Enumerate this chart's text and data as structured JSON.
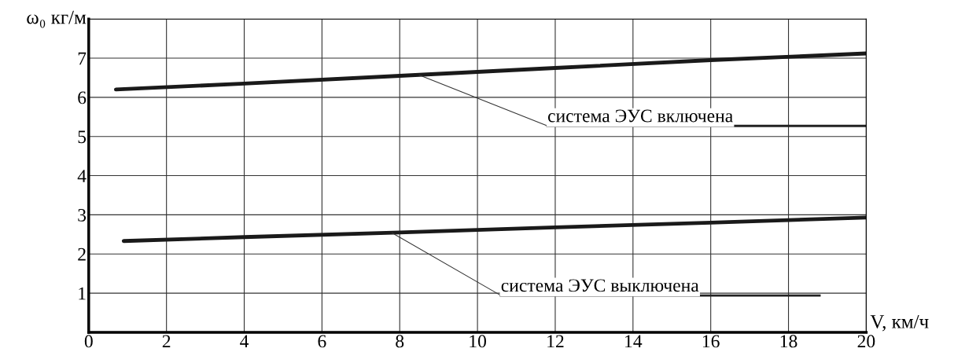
{
  "chart_data": {
    "type": "line",
    "xlabel": "V, км/ч",
    "ylabel": "ω₀ кг/м",
    "xlim": [
      0,
      20
    ],
    "ylim": [
      0,
      8
    ],
    "xticks": [
      0,
      2,
      4,
      6,
      8,
      10,
      12,
      14,
      16,
      18,
      20
    ],
    "yticks": [
      {
        "value": 0,
        "label": null
      },
      1,
      2,
      3,
      4,
      5,
      6,
      7,
      {
        "value": 8,
        "label": null
      }
    ],
    "grid": true,
    "legend": false,
    "marker": "none",
    "line_style": "solid",
    "series": [
      {
        "color": "#1a1a1a",
        "x": [
          0.7,
          4,
          8,
          12,
          16,
          20
        ],
        "values": [
          6.2,
          6.35,
          6.55,
          6.75,
          6.95,
          7.12
        ]
      },
      {
        "color": "#1a1a1a",
        "x": [
          0.9,
          4,
          8,
          12,
          16,
          20
        ],
        "values": [
          2.33,
          2.43,
          2.55,
          2.68,
          2.8,
          2.93
        ]
      }
    ],
    "annotations": [
      {
        "text": "система ЭУС включена",
        "x": 8.5,
        "y": 6.57
      },
      {
        "text": "система ЭУС выключена",
        "x": 7.8,
        "y": 2.54
      }
    ]
  }
}
